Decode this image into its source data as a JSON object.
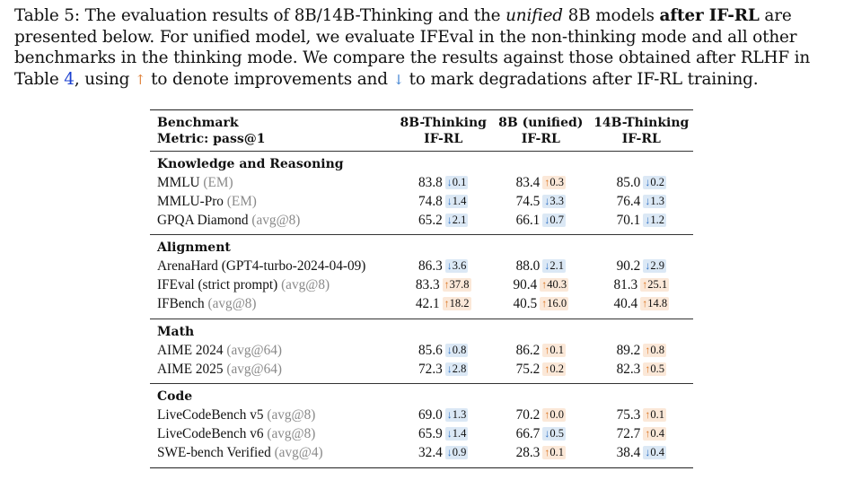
{
  "caption": {
    "s1": "Table 5: The evaluation results of 8B/14B-Thinking and the ",
    "s2": "unified",
    "s3": " 8B models ",
    "s4": "after IF-RL",
    "s5": " are presented below. For unified model, we evaluate IFEval in the non-thinking mode and all other benchmarks in the thinking mode. We compare the results against those obtained after RLHF in Table ",
    "s6": "4",
    "s7": ", using ",
    "s8": "↑",
    "s9": " to denote improvements and ",
    "s10": "↓",
    "s11": " to mark degradations after IF-RL training."
  },
  "table": {
    "header": {
      "benchmark": "Benchmark",
      "metric": "Metric: pass@1",
      "col1_line1": "8B-Thinking",
      "col1_line2": "IF-RL",
      "col2_line1": "8B (unified)",
      "col2_line2": "IF-RL",
      "col3_line1": "14B-Thinking",
      "col3_line2": "IF-RL"
    },
    "sections": [
      {
        "title": "Knowledge and Reasoning",
        "rows": [
          {
            "name": "MMLU",
            "note": "(EM)",
            "cells": [
              {
                "value": "83.8",
                "dir": "down",
                "arrow": "↓",
                "delta": "0.1"
              },
              {
                "value": "83.4",
                "dir": "up",
                "arrow": "↑",
                "delta": "0.3"
              },
              {
                "value": "85.0",
                "dir": "down",
                "arrow": "↓",
                "delta": "0.2"
              }
            ]
          },
          {
            "name": "MMLU-Pro",
            "note": "(EM)",
            "cells": [
              {
                "value": "74.8",
                "dir": "down",
                "arrow": "↓",
                "delta": "1.4"
              },
              {
                "value": "74.5",
                "dir": "down",
                "arrow": "↓",
                "delta": "3.3"
              },
              {
                "value": "76.4",
                "dir": "down",
                "arrow": "↓",
                "delta": "1.3"
              }
            ]
          },
          {
            "name": "GPQA Diamond",
            "note": "(avg@8)",
            "cells": [
              {
                "value": "65.2",
                "dir": "down",
                "arrow": "↓",
                "delta": "2.1"
              },
              {
                "value": "66.1",
                "dir": "down",
                "arrow": "↓",
                "delta": "0.7"
              },
              {
                "value": "70.1",
                "dir": "down",
                "arrow": "↓",
                "delta": "1.2"
              }
            ]
          }
        ]
      },
      {
        "title": "Alignment",
        "rows": [
          {
            "name": "ArenaHard (GPT4-turbo-2024-04-09)",
            "note": "",
            "cells": [
              {
                "value": "86.3",
                "dir": "down",
                "arrow": "↓",
                "delta": "3.6"
              },
              {
                "value": "88.0",
                "dir": "down",
                "arrow": "↓",
                "delta": "2.1"
              },
              {
                "value": "90.2",
                "dir": "down",
                "arrow": "↓",
                "delta": "2.9"
              }
            ]
          },
          {
            "name": "IFEval (strict prompt)",
            "note": "(avg@8)",
            "cells": [
              {
                "value": "83.3",
                "dir": "up",
                "arrow": "↑",
                "delta": "37.8"
              },
              {
                "value": "90.4",
                "dir": "up",
                "arrow": "↑",
                "delta": "40.3"
              },
              {
                "value": "81.3",
                "dir": "up",
                "arrow": "↑",
                "delta": "25.1"
              }
            ]
          },
          {
            "name": "IFBench",
            "note": "(avg@8)",
            "cells": [
              {
                "value": "42.1",
                "dir": "up",
                "arrow": "↑",
                "delta": "18.2"
              },
              {
                "value": "40.5",
                "dir": "up",
                "arrow": "↑",
                "delta": "16.0"
              },
              {
                "value": "40.4",
                "dir": "up",
                "arrow": "↑",
                "delta": "14.8"
              }
            ]
          }
        ]
      },
      {
        "title": "Math",
        "rows": [
          {
            "name": "AIME 2024",
            "note": "(avg@64)",
            "cells": [
              {
                "value": "85.6",
                "dir": "down",
                "arrow": "↓",
                "delta": "0.8"
              },
              {
                "value": "86.2",
                "dir": "up",
                "arrow": "↑",
                "delta": "0.1"
              },
              {
                "value": "89.2",
                "dir": "up",
                "arrow": "↑",
                "delta": "0.8"
              }
            ]
          },
          {
            "name": "AIME 2025",
            "note": "(avg@64)",
            "cells": [
              {
                "value": "72.3",
                "dir": "down",
                "arrow": "↓",
                "delta": "2.8"
              },
              {
                "value": "75.2",
                "dir": "up",
                "arrow": "↑",
                "delta": "0.2"
              },
              {
                "value": "82.3",
                "dir": "up",
                "arrow": "↑",
                "delta": "0.5"
              }
            ]
          }
        ]
      },
      {
        "title": "Code",
        "rows": [
          {
            "name": "LiveCodeBench v5",
            "note": "(avg@8)",
            "cells": [
              {
                "value": "69.0",
                "dir": "down",
                "arrow": "↓",
                "delta": "1.3"
              },
              {
                "value": "70.2",
                "dir": "up",
                "arrow": "↑",
                "delta": "0.0"
              },
              {
                "value": "75.3",
                "dir": "up",
                "arrow": "↑",
                "delta": "0.1"
              }
            ]
          },
          {
            "name": "LiveCodeBench v6",
            "note": "(avg@8)",
            "cells": [
              {
                "value": "65.9",
                "dir": "down",
                "arrow": "↓",
                "delta": "1.4"
              },
              {
                "value": "66.7",
                "dir": "down",
                "arrow": "↓",
                "delta": "0.5"
              },
              {
                "value": "72.7",
                "dir": "up",
                "arrow": "↑",
                "delta": "0.4"
              }
            ]
          },
          {
            "name": "SWE-bench Verified",
            "note": "(avg@4)",
            "cells": [
              {
                "value": "32.4",
                "dir": "down",
                "arrow": "↓",
                "delta": "0.9"
              },
              {
                "value": "28.3",
                "dir": "up",
                "arrow": "↑",
                "delta": "0.1"
              },
              {
                "value": "38.4",
                "dir": "down",
                "arrow": "↓",
                "delta": "0.4"
              }
            ]
          }
        ]
      }
    ]
  }
}
